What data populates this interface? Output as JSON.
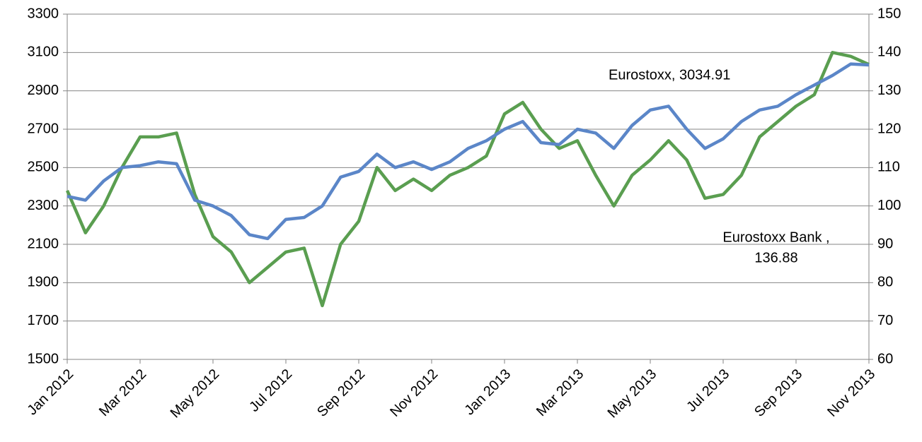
{
  "chart_data": {
    "type": "line",
    "categories": [
      "Jan 2012",
      null,
      null,
      null,
      "Mar 2012",
      null,
      null,
      null,
      "May 2012",
      null,
      null,
      null,
      "Jul 2012",
      null,
      null,
      null,
      "Sep 2012",
      null,
      null,
      null,
      "Nov 2012",
      null,
      null,
      null,
      "Jan 2013",
      null,
      null,
      null,
      "Mar 2013",
      null,
      null,
      null,
      "May 2013",
      null,
      null,
      null,
      "Jul 2013",
      null,
      null,
      null,
      "Sep 2013",
      null,
      null,
      null,
      "Nov 2013"
    ],
    "series": [
      {
        "color": "#5b86c8",
        "axis": "y",
        "values": [
          2350,
          2330,
          2430,
          2500,
          2510,
          2530,
          2520,
          2330,
          2300,
          2250,
          2150,
          2130,
          2230,
          2240,
          2300,
          2450,
          2480,
          2570,
          2500,
          2530,
          2490,
          2530,
          2600,
          2640,
          2700,
          2740,
          2630,
          2620,
          2700,
          2680,
          2600,
          2720,
          2800,
          2820,
          2700,
          2600,
          2650,
          2740,
          2800,
          2820,
          2880,
          2930,
          2980,
          3040,
          3034.91
        ]
      },
      {
        "color": "#5a9e50",
        "axis": "y2",
        "values": [
          104,
          93,
          100,
          110,
          118,
          118,
          119,
          103,
          92,
          88,
          80,
          84,
          88,
          89,
          74,
          90,
          96,
          110,
          104,
          107,
          104,
          108,
          110,
          113,
          124,
          127,
          120,
          115,
          117,
          108,
          100,
          108,
          112,
          117,
          112,
          102,
          103,
          108,
          118,
          122,
          126,
          129,
          140,
          139,
          136.88
        ]
      }
    ],
    "ylim": [
      1500,
      3300
    ],
    "yticks": [
      1500,
      1700,
      1900,
      2100,
      2300,
      2500,
      2700,
      2900,
      3100,
      3300
    ],
    "y2lim": [
      60,
      150
    ],
    "y2ticks": [
      60,
      70,
      80,
      90,
      100,
      110,
      120,
      130,
      140,
      150
    ],
    "grid": true,
    "annotations": [
      "Eurostoxx, 3034.91",
      "Eurostoxx Bank ,",
      "136.88"
    ]
  }
}
